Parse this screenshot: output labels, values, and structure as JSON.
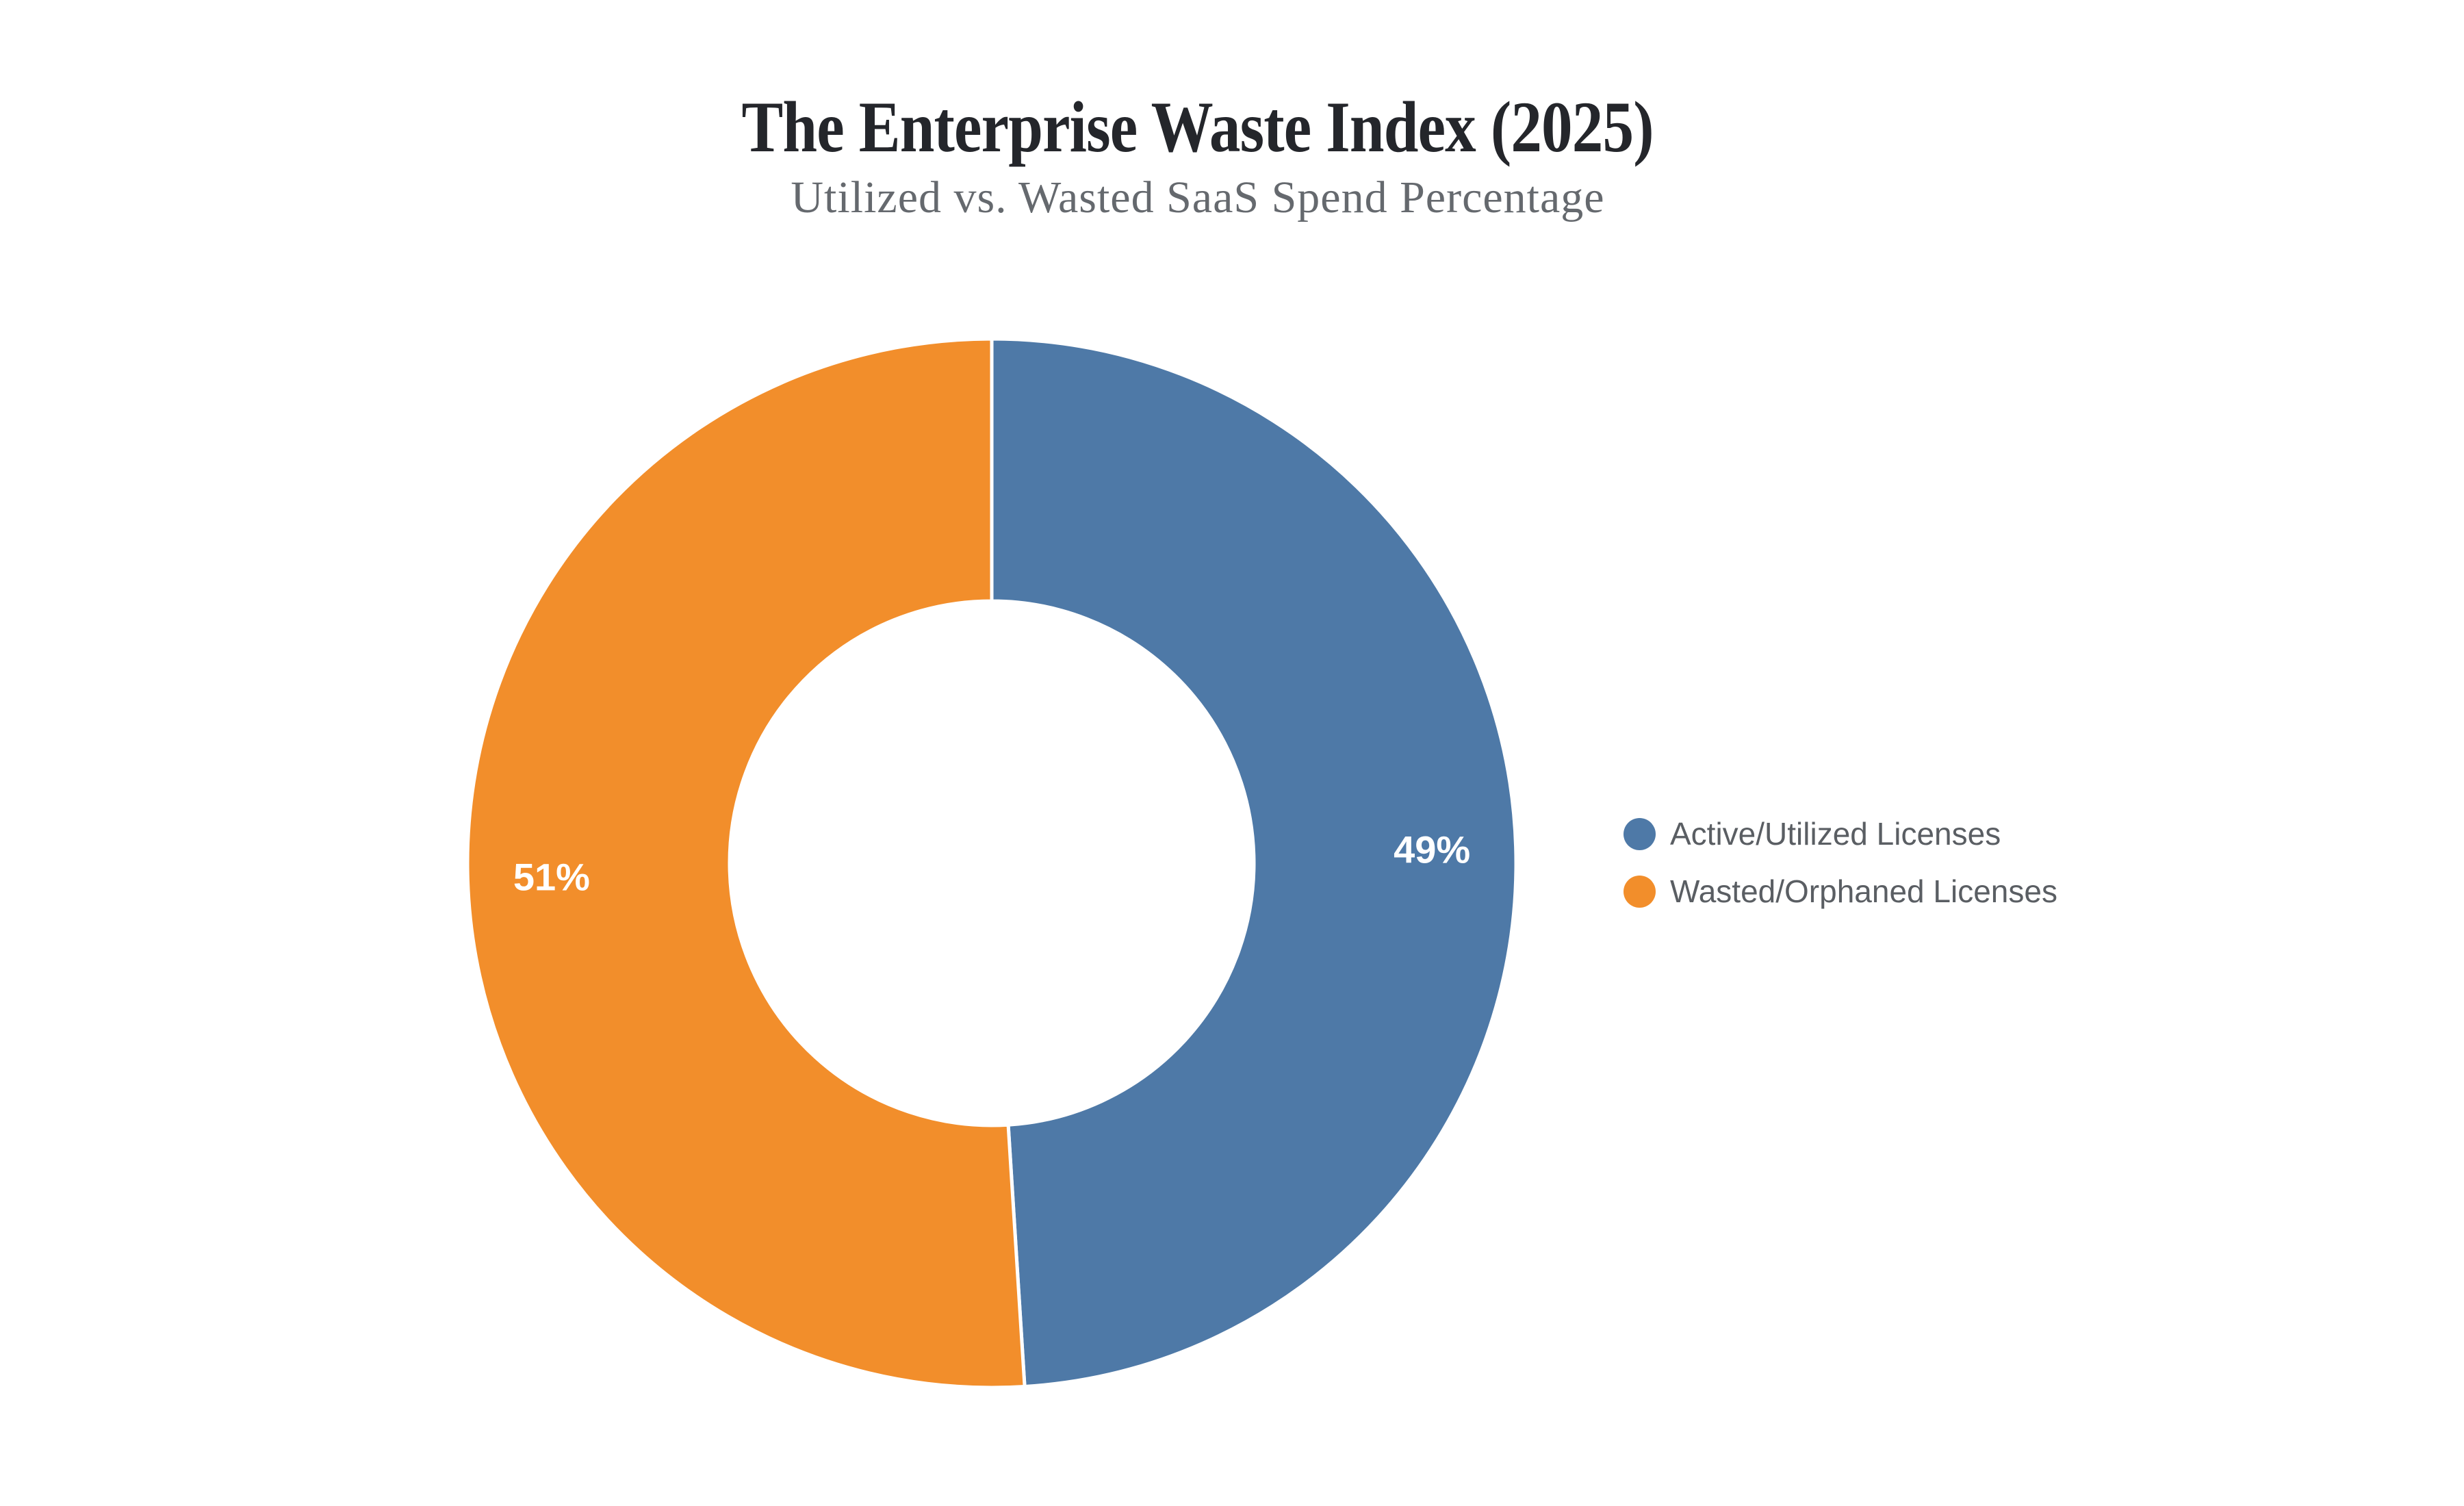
{
  "chart_data": {
    "type": "pie",
    "variant": "donut",
    "title": "The Enterprise Waste Index (2025)",
    "subtitle": "Utilized vs. Wasted SaaS Spend Percentage",
    "inner_radius_ratio": 0.5,
    "rotation_deg": 0,
    "direction": "clockwise",
    "legend_position": "right",
    "background_color": "#ffffff",
    "data_labels": {
      "color": "#ffffff",
      "format": "percent"
    },
    "segments": [
      {
        "label": "Active/Utilized Licenses",
        "value": 49,
        "display": "49%",
        "color": "#4e79a7"
      },
      {
        "label": "Wasted/Orphaned Licenses",
        "value": 51,
        "display": "51%",
        "color": "#f28e2b"
      }
    ]
  }
}
